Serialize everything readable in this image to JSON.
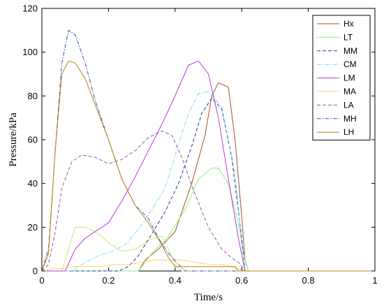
{
  "chart_data": {
    "type": "line",
    "title": "",
    "xlabel": "Time/s",
    "ylabel": "Pressure/kPa",
    "xlim": [
      0,
      1
    ],
    "ylim": [
      0,
      120
    ],
    "xticks": [
      0,
      0.2,
      0.4,
      0.6,
      0.8,
      1
    ],
    "xtick_labels": [
      "0",
      "0.2",
      "0.4",
      "0.6",
      "0.8",
      "1"
    ],
    "yticks": [
      0,
      20,
      40,
      60,
      80,
      100,
      120
    ],
    "ytick_labels": [
      "0",
      "20",
      "40",
      "60",
      "80",
      "100",
      "120"
    ],
    "grid": false,
    "legend_position": "top-right",
    "series": [
      {
        "name": "Hx",
        "color": "#a0522d",
        "dash": "solid",
        "x": [
          0,
          0.29,
          0.31,
          0.35,
          0.4,
          0.45,
          0.49,
          0.51,
          0.53,
          0.56,
          0.58,
          0.6,
          0.61,
          0.62,
          1.0
        ],
        "y": [
          0,
          0,
          5,
          10,
          18,
          40,
          62,
          80,
          86,
          84,
          60,
          25,
          5,
          0,
          0
        ]
      },
      {
        "name": "LT",
        "color": "#90ee7a",
        "dash": "solid",
        "x": [
          0,
          0.29,
          0.33,
          0.38,
          0.43,
          0.47,
          0.51,
          0.53,
          0.56,
          0.59,
          0.61,
          0.62,
          1.0
        ],
        "y": [
          0,
          0,
          8,
          16,
          28,
          42,
          47,
          47,
          40,
          22,
          5,
          0,
          0
        ]
      },
      {
        "name": "MM",
        "color": "#1f3a93",
        "dash": "dashed",
        "x": [
          0,
          0.23,
          0.26,
          0.29,
          0.33,
          0.37,
          0.41,
          0.45,
          0.48,
          0.51,
          0.54,
          0.57,
          0.6,
          0.61,
          1.0
        ],
        "y": [
          0,
          0,
          2,
          7,
          17,
          27,
          40,
          57,
          72,
          79,
          74,
          52,
          15,
          0,
          0
        ]
      },
      {
        "name": "CM",
        "color": "#7ad6f0",
        "dash": "dashdot",
        "x": [
          0,
          0.09,
          0.13,
          0.17,
          0.21,
          0.25,
          0.29,
          0.33,
          0.37,
          0.41,
          0.44,
          0.47,
          0.5,
          0.54,
          0.58,
          0.6,
          0.61,
          1.0
        ],
        "y": [
          0,
          0,
          4,
          7,
          9,
          12,
          19,
          28,
          38,
          58,
          72,
          81,
          82,
          75,
          45,
          12,
          0,
          0
        ]
      },
      {
        "name": "LM",
        "color": "#b43cd9",
        "dash": "solid",
        "x": [
          0,
          0.07,
          0.1,
          0.13,
          0.17,
          0.2,
          0.24,
          0.28,
          0.32,
          0.36,
          0.4,
          0.44,
          0.47,
          0.5,
          0.53,
          0.56,
          0.59,
          0.61,
          1.0
        ],
        "y": [
          0,
          0,
          10,
          15,
          19,
          22,
          32,
          43,
          55,
          67,
          80,
          94,
          96,
          90,
          70,
          42,
          15,
          0,
          0
        ]
      },
      {
        "name": "MA",
        "color": "#ffd070",
        "dash": "solid",
        "x": [
          0,
          0.01,
          0.03,
          0.06,
          0.1,
          0.14,
          0.18,
          0.22,
          0.26,
          0.3,
          0.34,
          0.38,
          0.42,
          0.46,
          0.5,
          0.54,
          0.57,
          0.59,
          0.61,
          1.0
        ],
        "y": [
          0,
          0,
          1,
          1,
          2,
          2,
          2,
          3,
          3,
          4,
          5,
          5,
          5,
          4,
          3,
          3,
          2,
          1,
          0,
          0
        ]
      },
      {
        "name": "LA",
        "color": "#8a5aa8",
        "dash": "dashed",
        "x": [
          0,
          0.02,
          0.04,
          0.06,
          0.09,
          0.12,
          0.16,
          0.2,
          0.24,
          0.28,
          0.32,
          0.36,
          0.39,
          0.42,
          0.46,
          0.5,
          0.54,
          0.57,
          0.59,
          0.6,
          0.61,
          1.0
        ],
        "y": [
          0,
          3,
          18,
          38,
          50,
          53,
          52,
          49,
          51,
          55,
          61,
          64,
          62,
          52,
          35,
          20,
          10,
          6,
          4,
          2,
          0,
          0
        ]
      },
      {
        "name": "MH",
        "color": "#3a4fb0",
        "dash": "dashdot",
        "x": [
          0,
          0.02,
          0.04,
          0.06,
          0.08,
          0.1,
          0.13,
          0.16,
          0.2,
          0.24,
          0.28,
          0.32,
          0.35,
          0.38,
          0.41,
          0.43,
          1.0
        ],
        "y": [
          0,
          10,
          55,
          95,
          110,
          108,
          95,
          78,
          60,
          42,
          30,
          24,
          15,
          8,
          3,
          0,
          0
        ]
      },
      {
        "name": "LH",
        "color": "#b8860b",
        "dash": "solid",
        "x": [
          0,
          0.02,
          0.04,
          0.06,
          0.08,
          0.1,
          0.13,
          0.16,
          0.2,
          0.24,
          0.28,
          0.32,
          0.36,
          0.38,
          0.4,
          0.45,
          0.5,
          0.55,
          0.58,
          0.59,
          1.0
        ],
        "y": [
          0,
          8,
          55,
          90,
          96,
          95,
          88,
          76,
          60,
          42,
          30,
          22,
          12,
          6,
          2,
          2,
          2,
          2,
          2,
          0,
          0
        ]
      }
    ],
    "extra_curve": {
      "name": "",
      "color": "#c9e87a",
      "dash": "solid",
      "x": [
        0,
        0.06,
        0.1,
        0.13,
        0.17,
        0.2,
        0.24,
        0.28,
        0.32,
        0.36,
        0.38,
        0.4,
        0.42,
        1.0
      ],
      "y": [
        0,
        0,
        20,
        20,
        17,
        13,
        9,
        10,
        14,
        16,
        10,
        3,
        0,
        0
      ]
    }
  }
}
